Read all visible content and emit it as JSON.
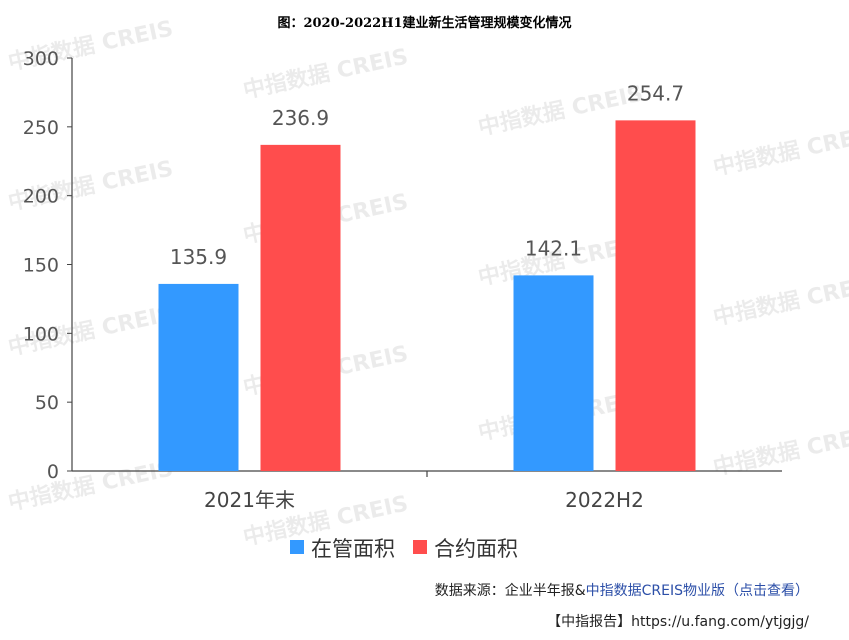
{
  "chart_data": {
    "type": "bar",
    "title": "图：2020-2022H1建业新生活管理规模变化情况",
    "xlabel": "",
    "ylabel": "",
    "categories": [
      "2021年末",
      "2022H2"
    ],
    "series": [
      {
        "name": "在管面积",
        "values": [
          135.9,
          142.1
        ],
        "color": "#3399ff"
      },
      {
        "name": "合约面积",
        "values": [
          236.9,
          254.7
        ],
        "color": "#ff4d4d"
      }
    ],
    "ylim": [
      0,
      300
    ],
    "yticks": [
      "0",
      "50",
      "100",
      "150",
      "200",
      "250",
      "300"
    ],
    "data_labels": [
      "135.9",
      "236.9",
      "142.1",
      "254.7"
    ],
    "grid": false,
    "legend_position": "bottom"
  },
  "watermark": "中指数据 CREIS",
  "footer": {
    "source_prefix": "数据来源：企业半年报&",
    "source_brand": "中指数据CREIS物业版（点击查看）",
    "report": "【中指报告】https://u.fang.com/ytjgjg/"
  }
}
